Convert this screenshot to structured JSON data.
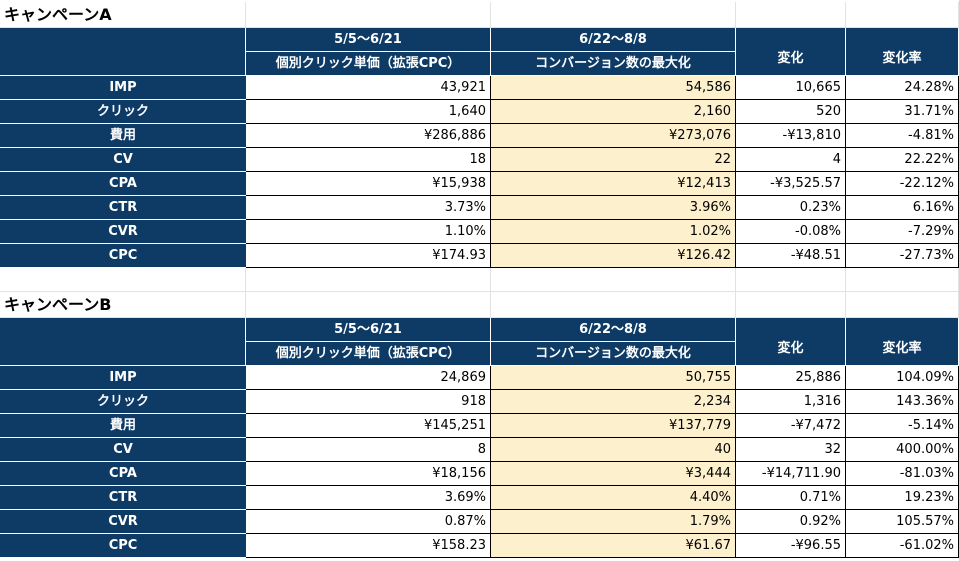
{
  "campaigns": [
    {
      "title": "キャンペーンA",
      "period1": "5/5〜6/21",
      "period1_sub": "個別クリック単価（拡張CPC）",
      "period2": "6/22〜8/8",
      "period2_sub": "コンバージョン数の最大化",
      "change_header": "変化",
      "rate_header": "変化率",
      "rows": [
        {
          "label": "IMP",
          "p1": "43,921",
          "p2": "54,586",
          "change": "10,665",
          "rate": "24.28%"
        },
        {
          "label": "クリック",
          "p1": "1,640",
          "p2": "2,160",
          "change": "520",
          "rate": "31.71%"
        },
        {
          "label": "費用",
          "p1": "¥286,886",
          "p2": "¥273,076",
          "change": "-¥13,810",
          "rate": "-4.81%"
        },
        {
          "label": "CV",
          "p1": "18",
          "p2": "22",
          "change": "4",
          "rate": "22.22%"
        },
        {
          "label": "CPA",
          "p1": "¥15,938",
          "p2": "¥12,413",
          "change": "-¥3,525.57",
          "rate": "-22.12%"
        },
        {
          "label": "CTR",
          "p1": "3.73%",
          "p2": "3.96%",
          "change": "0.23%",
          "rate": "6.16%"
        },
        {
          "label": "CVR",
          "p1": "1.10%",
          "p2": "1.02%",
          "change": "-0.08%",
          "rate": "-7.29%"
        },
        {
          "label": "CPC",
          "p1": "¥174.93",
          "p2": "¥126.42",
          "change": "-¥48.51",
          "rate": "-27.73%"
        }
      ]
    },
    {
      "title": "キャンペーンB",
      "period1": "5/5〜6/21",
      "period1_sub": "個別クリック単価（拡張CPC）",
      "period2": "6/22〜8/8",
      "period2_sub": "コンバージョン数の最大化",
      "change_header": "変化",
      "rate_header": "変化率",
      "rows": [
        {
          "label": "IMP",
          "p1": "24,869",
          "p2": "50,755",
          "change": "25,886",
          "rate": "104.09%"
        },
        {
          "label": "クリック",
          "p1": "918",
          "p2": "2,234",
          "change": "1,316",
          "rate": "143.36%"
        },
        {
          "label": "費用",
          "p1": "¥145,251",
          "p2": "¥137,779",
          "change": "-¥7,472",
          "rate": "-5.14%"
        },
        {
          "label": "CV",
          "p1": "8",
          "p2": "40",
          "change": "32",
          "rate": "400.00%"
        },
        {
          "label": "CPA",
          "p1": "¥18,156",
          "p2": "¥3,444",
          "change": "-¥14,711.90",
          "rate": "-81.03%"
        },
        {
          "label": "CTR",
          "p1": "3.69%",
          "p2": "4.40%",
          "change": "0.71%",
          "rate": "19.23%"
        },
        {
          "label": "CVR",
          "p1": "0.87%",
          "p2": "1.79%",
          "change": "0.92%",
          "rate": "105.57%"
        },
        {
          "label": "CPC",
          "p1": "¥158.23",
          "p2": "¥61.67",
          "change": "-¥96.55",
          "rate": "-61.02%"
        }
      ]
    }
  ],
  "colors": {
    "header_bg": "#0d3b66",
    "highlight_bg": "#fdf0cc",
    "grid": "#e2e2e2"
  }
}
